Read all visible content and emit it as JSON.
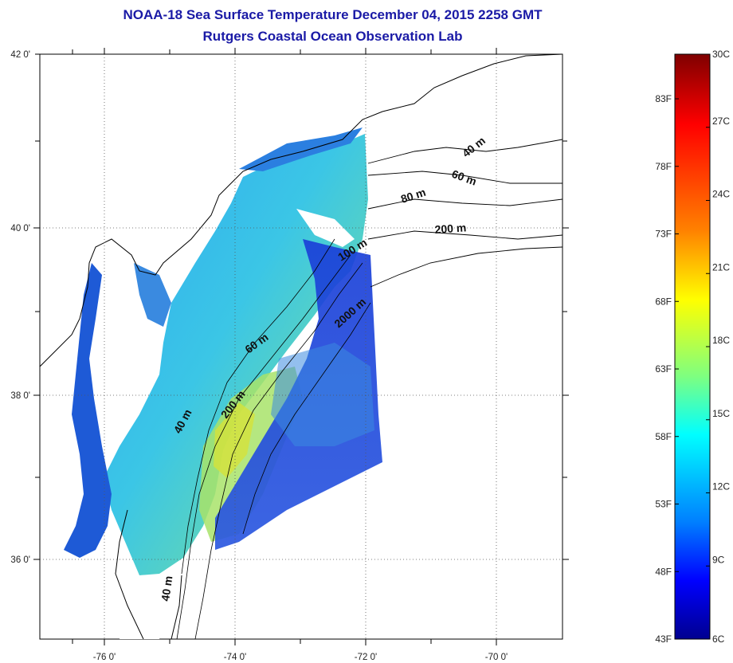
{
  "title": {
    "line1": "NOAA-18 Sea Surface Temperature December 04, 2015 2258 GMT",
    "line2": "Rutgers Coastal Ocean Observation Lab"
  },
  "map": {
    "lon_ticks": [
      "-76 0'",
      "-74 0'",
      "-72 0'",
      "-70 0'"
    ],
    "lat_ticks": [
      "42 0'",
      "40 0'",
      "38 0'",
      "36 0'"
    ],
    "contour_labels": [
      "40 m",
      "60 m",
      "80 m",
      "200 m",
      "100 m",
      "2000 m",
      "60 m",
      "200 m",
      "40 m",
      "40 m"
    ],
    "colors": {
      "land": "#ffffff",
      "coastline": "#000000",
      "nodata": "#ffffff"
    }
  },
  "colorbar": {
    "celsius": [
      "30C",
      "27C",
      "24C",
      "21C",
      "18C",
      "15C",
      "12C",
      "9C",
      "6C"
    ],
    "fahrenheit": [
      "83F",
      "78F",
      "73F",
      "68F",
      "63F",
      "58F",
      "53F",
      "48F",
      "43F"
    ],
    "gradient_colors": [
      "#7f0000",
      "#ff0000",
      "#ff7f00",
      "#ffff00",
      "#7fff7f",
      "#00ffff",
      "#007fff",
      "#0000ff",
      "#00008f"
    ]
  }
}
